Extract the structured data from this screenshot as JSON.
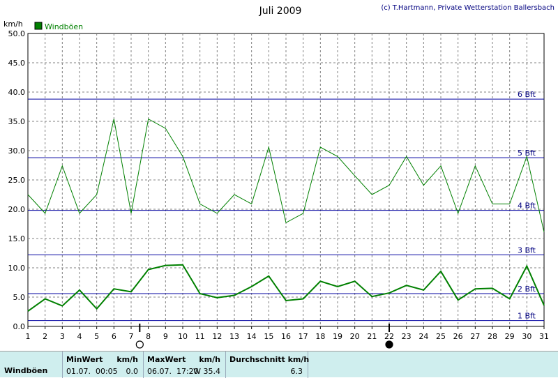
{
  "title": "Juli 2009",
  "credit": "(c) T.Hartmann, Private Wetterstation Ballersbach",
  "legend_label": "Windböen",
  "colors": {
    "series": "#008000",
    "bft_line": "#0000a0",
    "grid": "#808080",
    "stats_bg": "#cfeeee"
  },
  "moon_icons": [
    "full-moon-icon",
    "new-moon-icon"
  ],
  "chart_data": {
    "type": "line",
    "title": "Juli 2009",
    "ylabel": "km/h",
    "xlabel": "",
    "x": [
      1,
      2,
      3,
      4,
      5,
      6,
      7,
      8,
      9,
      10,
      11,
      12,
      13,
      14,
      15,
      16,
      17,
      18,
      19,
      20,
      21,
      22,
      23,
      24,
      25,
      26,
      27,
      28,
      29,
      30,
      31
    ],
    "ylim": [
      0,
      50
    ],
    "xlim": [
      1,
      31
    ],
    "y_ticks": [
      "0.0",
      "5.0",
      "10.0",
      "15.0",
      "20.0",
      "25.0",
      "30.0",
      "35.0",
      "40.0",
      "45.0",
      "50.0"
    ],
    "grid": true,
    "legend": "top-left",
    "series": [
      {
        "name": "Windböen",
        "style": "thin",
        "values": [
          22.5,
          19.3,
          27.4,
          19.3,
          22.5,
          35.4,
          19.3,
          35.4,
          33.8,
          29.0,
          20.9,
          19.3,
          22.5,
          20.9,
          30.6,
          17.7,
          19.3,
          30.6,
          29.0,
          25.7,
          22.5,
          24.1,
          29.0,
          24.1,
          27.4,
          19.3,
          27.4,
          20.9,
          20.9,
          29.0,
          16.1
        ]
      },
      {
        "name": "",
        "style": "thick",
        "values": [
          2.6,
          4.7,
          3.5,
          6.2,
          3.0,
          6.4,
          5.9,
          9.7,
          10.4,
          10.5,
          5.6,
          4.9,
          5.3,
          6.8,
          8.6,
          4.4,
          4.7,
          7.7,
          6.8,
          7.7,
          5.1,
          5.7,
          7.0,
          6.2,
          9.4,
          4.5,
          6.4,
          6.5,
          4.7,
          10.3,
          3.6
        ]
      }
    ],
    "beaufort_lines": [
      {
        "label": "1 Bft",
        "value": 1.0
      },
      {
        "label": "2 Bft",
        "value": 5.6
      },
      {
        "label": "3 Bft",
        "value": 12.2
      },
      {
        "label": "4 Bft",
        "value": 19.8
      },
      {
        "label": "5 Bft",
        "value": 28.8
      },
      {
        "label": "6 Bft",
        "value": 38.8
      }
    ],
    "moon_days": [
      {
        "day": 7.5,
        "phase": "full",
        "icon": "full-moon-icon"
      },
      {
        "day": 22.0,
        "phase": "new",
        "icon": "new-moon-icon"
      }
    ]
  },
  "stats": {
    "row_label": "Windböen",
    "min": {
      "header": "MinWert",
      "unit": "km/h",
      "datetime": "01.07.  00:05",
      "value": "0.0"
    },
    "max": {
      "header": "MaxWert",
      "unit": "km/h",
      "datetime": "06.07.  17:20",
      "value": "W 35.4"
    },
    "avg": {
      "header": "Durchschnitt km/h",
      "value": "6.3"
    }
  }
}
